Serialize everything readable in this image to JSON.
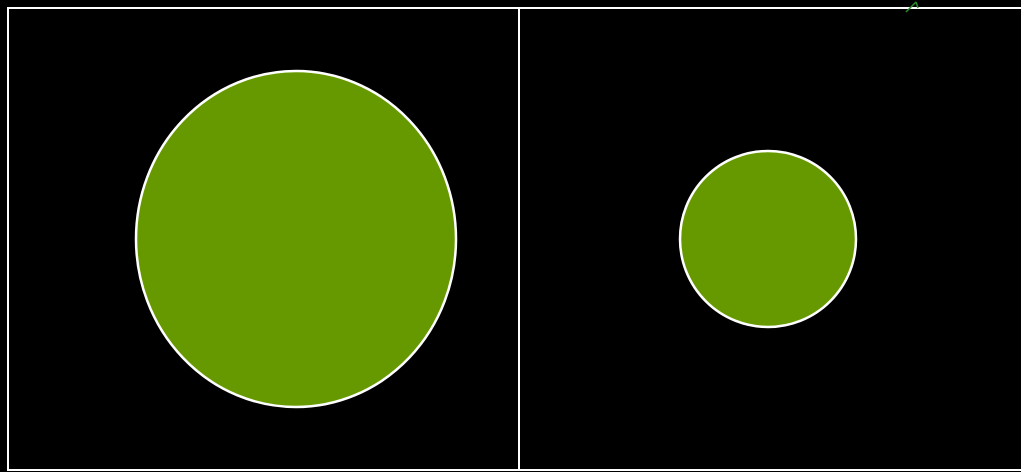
{
  "colors": {
    "background": "#000000",
    "panel_border": "#ffffff",
    "circle_fill": "#669900",
    "circle_stroke": "#ffffff",
    "corner_mark": "#2e8b2e"
  },
  "panels": [
    {
      "name": "left-panel",
      "shape": "ellipse",
      "size": "large"
    },
    {
      "name": "right-panel",
      "shape": "circle",
      "size": "small"
    }
  ],
  "decorations": {
    "corner_mark_icon": "arrow-fragment-icon"
  }
}
